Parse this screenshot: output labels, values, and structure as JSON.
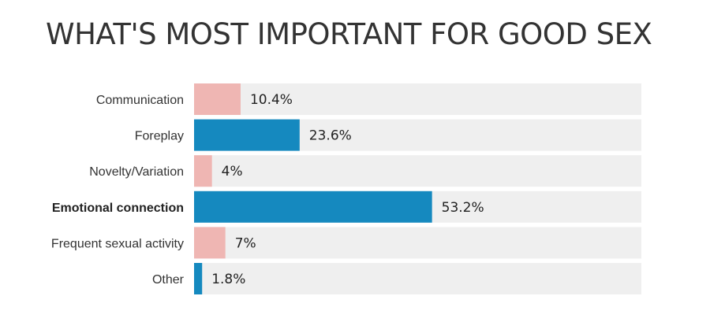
{
  "chart_data": {
    "type": "bar",
    "orientation": "horizontal",
    "title": "WHAT'S MOST IMPORTANT FOR GOOD SEX",
    "categories": [
      "Communication",
      "Foreplay",
      "Novelty/Variation",
      "Emotional connection",
      "Frequent sexual activity",
      "Other"
    ],
    "values": [
      10.4,
      23.6,
      4,
      53.2,
      7,
      1.8
    ],
    "value_labels": [
      "10.4%",
      "23.6%",
      "4%",
      "53.2%",
      "7%",
      "1.8%"
    ],
    "highlighted_category": "Emotional connection",
    "bar_colors": [
      "#efb6b3",
      "#1589bf",
      "#efb6b3",
      "#1589bf",
      "#efb6b3",
      "#1589bf"
    ],
    "track_color": "#efefef",
    "xlim": [
      0,
      100
    ],
    "unit": "%",
    "legend": "none",
    "grid": false
  }
}
